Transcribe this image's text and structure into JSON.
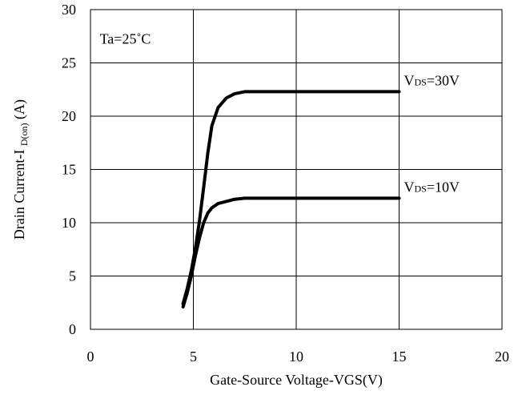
{
  "chart_data": {
    "type": "line",
    "xlabel": "Gate-Source Voltage-VGS(V)",
    "ylabel": {
      "main": "Drain Current-I",
      "sub": "D(on)",
      "suffix": "(A)"
    },
    "xlim": [
      0,
      20
    ],
    "ylim": [
      0,
      30
    ],
    "x_ticks": [
      0,
      5,
      10,
      15,
      20
    ],
    "y_ticks": [
      0,
      5,
      10,
      15,
      20,
      25,
      30
    ],
    "x_tick_labels": [
      "0",
      "5",
      "10",
      "15",
      "20"
    ],
    "y_tick_labels": [
      "0",
      "5",
      "10",
      "15",
      "20",
      "25",
      "30"
    ],
    "grid": true,
    "annotations": [
      {
        "text": "Ta=25˚C"
      }
    ],
    "series": [
      {
        "name": "VDS=30V",
        "label_parts": [
          "V",
          "DS",
          "=30V"
        ],
        "color": "#000000",
        "x": [
          4.5,
          4.7,
          4.9,
          5.1,
          5.3,
          5.5,
          5.7,
          5.9,
          6.2,
          6.6,
          7.0,
          7.5,
          10.0,
          15.0
        ],
        "y": [
          2.4,
          3.8,
          5.5,
          7.6,
          10.2,
          13.3,
          16.5,
          19.1,
          20.8,
          21.7,
          22.1,
          22.3,
          22.3,
          22.3
        ]
      },
      {
        "name": "VDS=10V",
        "label_parts": [
          "V",
          "DS",
          "=10V"
        ],
        "color": "#000000",
        "x": [
          4.5,
          4.7,
          4.9,
          5.1,
          5.3,
          5.5,
          5.7,
          5.9,
          6.2,
          6.6,
          7.0,
          7.5,
          10.0,
          15.0
        ],
        "y": [
          2.1,
          3.4,
          5.0,
          6.9,
          8.6,
          10.0,
          10.9,
          11.4,
          11.8,
          12.0,
          12.2,
          12.3,
          12.3,
          12.3
        ]
      }
    ]
  }
}
